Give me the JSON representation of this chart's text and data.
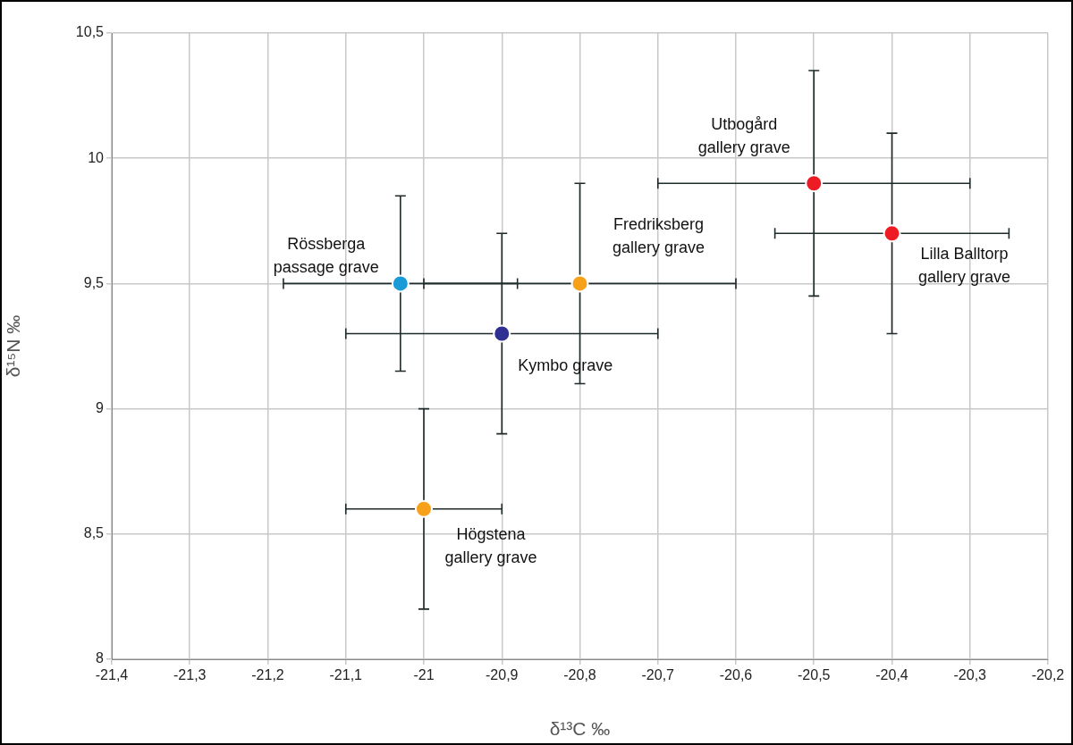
{
  "chart_data": {
    "type": "scatter",
    "xlabel": "δ¹³C ‰",
    "ylabel": "δ¹⁵N ‰",
    "xlim": [
      -21.4,
      -20.2
    ],
    "xticks": [
      {
        "value": -21.4,
        "label": "-21,4"
      },
      {
        "value": -21.3,
        "label": "-21,3"
      },
      {
        "value": -21.2,
        "label": "-21,2"
      },
      {
        "value": -21.1,
        "label": "-21,1"
      },
      -21,
      {
        "value": -20.9,
        "label": "-20,9"
      },
      {
        "value": -20.8,
        "label": "-20,8"
      },
      {
        "value": -20.7,
        "label": "-20,7"
      },
      {
        "value": -20.6,
        "label": "-20,6"
      },
      {
        "value": -20.5,
        "label": "-20,5"
      },
      {
        "value": -20.4,
        "label": "-20,4"
      },
      {
        "value": -20.3,
        "label": "-20,3"
      },
      {
        "value": -20.2,
        "label": "-20,2"
      }
    ],
    "ylim": [
      8,
      10.5
    ],
    "yticks": [
      8,
      {
        "value": 8.5,
        "label": "8,5"
      },
      9,
      {
        "value": 9.5,
        "label": "9,5"
      },
      10,
      {
        "value": 10.5,
        "label": "10,5"
      }
    ],
    "grid": true,
    "marker": "circle",
    "series": [
      {
        "x": [
          -21.03,
          -20.8,
          -20.9,
          -21.0,
          -20.5,
          -20.4
        ],
        "values": [
          9.5,
          9.5,
          9.3,
          8.6,
          9.9,
          9.7
        ],
        "colors": [
          "#1a9ad6",
          "#f7a11a",
          "#2e3192",
          "#f7a11a",
          "#ed1c24",
          "#ed1c24"
        ],
        "errors": [
          0.35,
          0.4,
          0.4,
          0.4,
          0.45,
          0.4
        ],
        "xerrors": [
          0.15,
          0.2,
          0.2,
          0.1,
          0.2,
          0.15
        ]
      }
    ],
    "annotations": [
      {
        "text": "Rössberga\npassage grave",
        "x": -21.03,
        "y": 9.5
      },
      {
        "text": "Fredriksberg\ngallery grave",
        "x": -20.8,
        "y": 9.5
      },
      {
        "text": "Kymbo grave",
        "x": -20.9,
        "y": 9.3
      },
      {
        "text": "Högstena\ngallery grave",
        "x": -21.0,
        "y": 8.6
      },
      {
        "text": "Utbogård\ngallery grave",
        "x": -20.5,
        "y": 9.9
      },
      {
        "text": "Lilla Balltorp\ngallery grave",
        "x": -20.4,
        "y": 9.7
      }
    ]
  }
}
